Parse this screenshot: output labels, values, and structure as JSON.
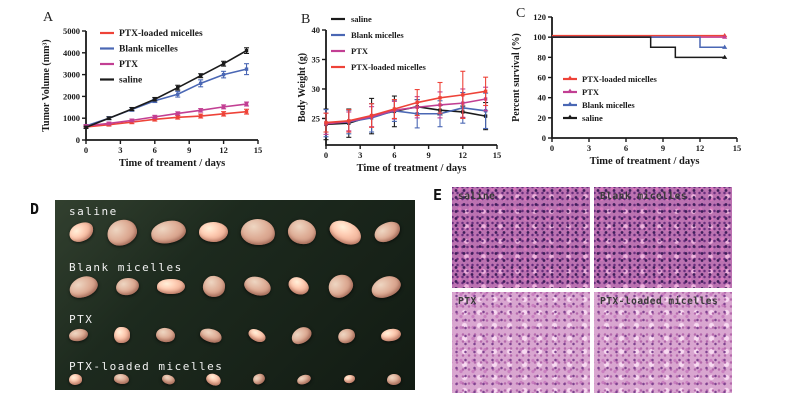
{
  "figure": {
    "panel_letters": {
      "a": "A",
      "b": "B",
      "c": "C",
      "d": "D",
      "e": "E"
    }
  },
  "colors": {
    "saline": "#1b1b1b",
    "blank_micelles": "#4a67b4",
    "ptx": "#c23f93",
    "ptx_loaded_micelles": "#ee4338",
    "photo_background": "#1d2a1e",
    "tumor_tissue": "#ddab94",
    "histology_dense": "#bb72b1",
    "histology_light": "#d9a6d0"
  },
  "chart_data": [
    {
      "id": "A",
      "type": "line",
      "title": "",
      "xlabel": "Time of treament / days",
      "ylabel": "Tumor Volume (mm³)",
      "x": [
        0,
        2,
        4,
        6,
        8,
        10,
        12,
        14
      ],
      "xlim": [
        0,
        15
      ],
      "xticks": [
        0,
        3,
        6,
        9,
        12,
        15
      ],
      "ylim": [
        0,
        5000
      ],
      "yticks": [
        0,
        1000,
        2000,
        3000,
        4000,
        5000
      ],
      "grid": false,
      "legend_position": "top-left",
      "series": [
        {
          "name": "PTX-loaded micelles",
          "color": "#ee4338",
          "values": [
            600,
            700,
            820,
            950,
            1040,
            1100,
            1200,
            1300
          ],
          "err": [
            60,
            60,
            70,
            80,
            80,
            90,
            100,
            110
          ]
        },
        {
          "name": "Blank micelles",
          "color": "#4a67b4",
          "values": [
            650,
            1000,
            1400,
            1800,
            2100,
            2600,
            3000,
            3250
          ],
          "err": [
            60,
            70,
            80,
            80,
            130,
            160,
            150,
            250
          ]
        },
        {
          "name": "PTX",
          "color": "#c23f93",
          "values": [
            650,
            760,
            900,
            1060,
            1220,
            1360,
            1520,
            1650
          ],
          "err": [
            50,
            60,
            60,
            70,
            70,
            80,
            90,
            90
          ]
        },
        {
          "name": "saline",
          "color": "#1b1b1b",
          "values": [
            580,
            1000,
            1420,
            1870,
            2400,
            2950,
            3500,
            4100
          ],
          "err": [
            50,
            60,
            70,
            80,
            110,
            90,
            110,
            130
          ]
        }
      ]
    },
    {
      "id": "B",
      "type": "line",
      "title": "",
      "xlabel": "Time of treatment / days",
      "ylabel": "Body Weight (g)",
      "x": [
        0,
        2,
        4,
        6,
        8,
        10,
        12,
        14
      ],
      "xlim": [
        0,
        15
      ],
      "xticks": [
        0,
        3,
        6,
        9,
        12,
        15
      ],
      "ylim": [
        20.5,
        40
      ],
      "yticks": [
        25,
        30,
        35,
        40
      ],
      "grid": false,
      "legend_position": "top-left",
      "series": [
        {
          "name": "saline",
          "color": "#1b1b1b",
          "values": [
            24.0,
            24.2,
            25.4,
            26.2,
            27.0,
            26.4,
            26.1,
            25.4
          ],
          "err": [
            2.6,
            2.4,
            3.0,
            2.6,
            1.2,
            0.8,
            1.0,
            2.3
          ]
        },
        {
          "name": "Blank micelles",
          "color": "#4a67b4",
          "values": [
            24.2,
            24.4,
            25.1,
            26.3,
            25.8,
            25.8,
            26.8,
            26.3
          ],
          "err": [
            2.3,
            2.0,
            2.4,
            1.8,
            2.4,
            2.2,
            2.6,
            3.0
          ]
        },
        {
          "name": "PTX",
          "color": "#c23f93",
          "values": [
            24.1,
            24.5,
            25.3,
            26.4,
            26.9,
            27.3,
            27.6,
            28.3
          ],
          "err": [
            1.8,
            1.6,
            1.7,
            1.5,
            1.8,
            2.2,
            2.4,
            2.0
          ]
        },
        {
          "name": "PTX-loaded micelles",
          "color": "#ee4338",
          "values": [
            24.3,
            24.6,
            25.5,
            26.6,
            27.7,
            28.5,
            29.0,
            29.6
          ],
          "err": [
            1.6,
            1.9,
            2.0,
            1.6,
            2.2,
            2.6,
            4.0,
            2.4
          ]
        }
      ]
    },
    {
      "id": "C",
      "type": "step",
      "title": "",
      "xlabel": "Time of treatment / days",
      "ylabel": "Percent survival (%)",
      "xlim": [
        0,
        15
      ],
      "xticks": [
        0,
        3,
        6,
        9,
        12,
        15
      ],
      "ylim": [
        0,
        120
      ],
      "yticks": [
        0,
        20,
        40,
        60,
        80,
        100,
        120
      ],
      "grid": false,
      "legend_position": "middle-left",
      "series": [
        {
          "name": "PTX-loaded micelles",
          "color": "#ee4338",
          "points": [
            [
              0,
              100
            ],
            [
              14,
              100
            ]
          ]
        },
        {
          "name": "PTX",
          "color": "#c23f93",
          "points": [
            [
              0,
              100
            ],
            [
              14,
              100
            ]
          ]
        },
        {
          "name": "Blank micelles",
          "color": "#4a67b4",
          "points": [
            [
              0,
              100
            ],
            [
              12,
              100
            ],
            [
              12,
              90
            ],
            [
              14,
              90
            ]
          ]
        },
        {
          "name": "saline",
          "color": "#1b1b1b",
          "points": [
            [
              0,
              100
            ],
            [
              8,
              100
            ],
            [
              8,
              90
            ],
            [
              10,
              90
            ],
            [
              10,
              80
            ],
            [
              14,
              80
            ]
          ]
        }
      ]
    }
  ],
  "panel_d": {
    "rows": [
      {
        "label": "saline",
        "tumor_count": 8,
        "relative_size": "largest"
      },
      {
        "label": "Blank micelles",
        "tumor_count": 8,
        "relative_size": "large"
      },
      {
        "label": "PTX",
        "tumor_count": 8,
        "relative_size": "small"
      },
      {
        "label": "PTX-loaded micelles",
        "tumor_count": 8,
        "relative_size": "smallest"
      }
    ]
  },
  "panel_e": {
    "cells": [
      {
        "label": "saline",
        "staining_density": "dense"
      },
      {
        "label": "Blank micelles",
        "staining_density": "dense"
      },
      {
        "label": "PTX",
        "staining_density": "light"
      },
      {
        "label": "PTX-loaded micelles",
        "staining_density": "light"
      }
    ]
  }
}
